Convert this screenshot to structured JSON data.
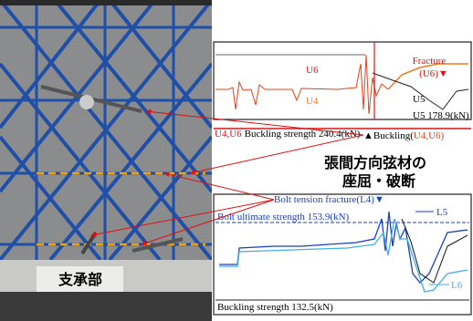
{
  "photo": {
    "label": "支承部"
  },
  "upper_plot": {
    "fracture": "Fracture",
    "fracture_member": "(U6)▼",
    "u6": "U6",
    "u4": "U4",
    "u5": "U5",
    "u5_strength": "U5 178.9(kN)",
    "buckling_members": "U4,U6",
    "buckling_strength": "Buckling strength 240.4(kN)",
    "buckling_event": "▲Buckling(",
    "buckling_event_members": "U4,U6)"
  },
  "caption": [
    "張間方向弦材の",
    "座屈・破断"
  ],
  "lower_plot": {
    "bolt_fracture": "Bolt tension fracture(L4)▼",
    "bolt_ultimate": "Bolt ultimate strength 153.9(kN)",
    "l5": "L5",
    "l6": "L6",
    "buckling_strength": "Buckling strength 132.5(kN)"
  }
}
